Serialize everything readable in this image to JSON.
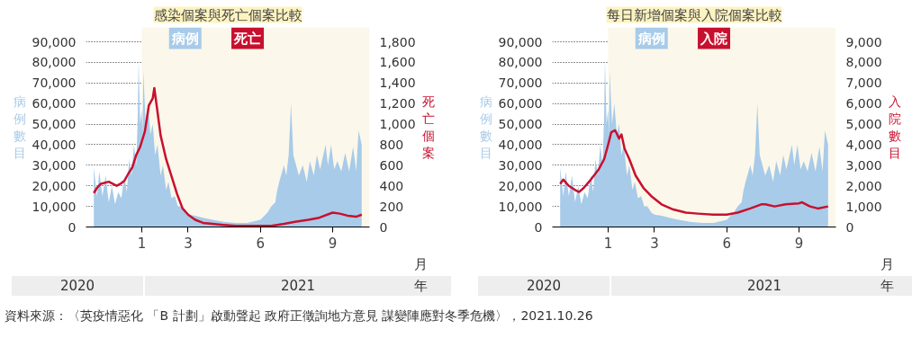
{
  "chart_data": [
    {
      "type": "area",
      "title": "感染個案與死亡個案比較",
      "ylabel": "病例數目",
      "y2label": "死亡個案",
      "xlim": [
        "2020-10-22",
        "2021-10-18"
      ],
      "ylim": [
        0,
        97000
      ],
      "y2lim": [
        0,
        1940
      ],
      "xticks": [
        {
          "value": "2021-01-01",
          "label": "1"
        },
        {
          "value": "2021-03-01",
          "label": "3"
        },
        {
          "value": "2021-06-01",
          "label": "6"
        },
        {
          "value": "2021-09-01",
          "label": "9"
        }
      ],
      "yticks": [
        0,
        {
          "value": 10000,
          "label": "10,000"
        },
        {
          "value": 20000,
          "label": "20,000"
        },
        {
          "value": 30000,
          "label": "30,000"
        },
        {
          "value": 40000,
          "label": "40,000"
        },
        {
          "value": 50000,
          "label": "50,000"
        },
        {
          "value": 60000,
          "label": "60,000"
        },
        {
          "value": 70000,
          "label": "70,000"
        },
        {
          "value": 80000,
          "label": "80,000"
        },
        {
          "value": 90000,
          "label": "90,000"
        }
      ],
      "y2ticks": [
        0,
        200,
        400,
        600,
        800,
        {
          "value": 1000,
          "label": "1,000"
        },
        {
          "value": 1200,
          "label": "1,200"
        },
        {
          "value": 1400,
          "label": "1,400"
        },
        {
          "value": 1600,
          "label": "1,600"
        },
        {
          "value": 1800,
          "label": "1,800"
        }
      ],
      "grid": "y",
      "legend": "top",
      "bands": [
        {
          "axis": "x",
          "from": "2021-01-01",
          "to": "2021-10-18",
          "color": "#fbf7ea"
        }
      ],
      "annotations": [
        "2020",
        "2021",
        "月",
        "年",
        "資料來源：〈英疫情惡化 「B 計劃」啟動聲起 政府正徵詢地方意見 謀變陣應對冬季危機〉，2021.10.26"
      ],
      "series": [
        {
          "name": "病例",
          "type": "area",
          "color": "#a7cbe9",
          "x": [
            "2020-11-01",
            "2020-11-05",
            "2020-11-08",
            "2020-11-12",
            "2020-11-16",
            "2020-11-20",
            "2020-11-24",
            "2020-11-28",
            "2020-12-02",
            "2020-12-06",
            "2020-12-10",
            "2020-12-13",
            "2020-12-16",
            "2020-12-19",
            "2020-12-22",
            "2020-12-25",
            "2020-12-27",
            "2020-12-28",
            "2020-12-30",
            "2021-01-01",
            "2021-01-02",
            "2021-01-03",
            "2021-01-06",
            "2021-01-09",
            "2021-01-12",
            "2021-01-15",
            "2021-01-18",
            "2021-01-21",
            "2021-01-25",
            "2021-01-28",
            "2021-02-01",
            "2021-02-04",
            "2021-02-08",
            "2021-02-12",
            "2021-02-16",
            "2021-02-20",
            "2021-02-25",
            "2021-03-01",
            "2021-03-10",
            "2021-03-20",
            "2021-04-01",
            "2021-04-15",
            "2021-05-01",
            "2021-05-15",
            "2021-06-01",
            "2021-06-10",
            "2021-06-15",
            "2021-06-20",
            "2021-06-22",
            "2021-06-25",
            "2021-06-28",
            "2021-07-01",
            "2021-07-04",
            "2021-07-07",
            "2021-07-10",
            "2021-07-13",
            "2021-07-20",
            "2021-07-25",
            "2021-07-30",
            "2021-08-03",
            "2021-08-08",
            "2021-08-12",
            "2021-08-16",
            "2021-08-23",
            "2021-08-26",
            "2021-08-30",
            "2021-09-03",
            "2021-09-07",
            "2021-09-12",
            "2021-09-17",
            "2021-09-22",
            "2021-09-27",
            "2021-10-01",
            "2021-10-04",
            "2021-10-08"
          ],
          "values": [
            29000,
            15000,
            27000,
            15000,
            25000,
            12000,
            20000,
            11000,
            17000,
            14000,
            25000,
            17000,
            33000,
            25000,
            40000,
            30000,
            55000,
            81000,
            50000,
            57000,
            45000,
            76000,
            50000,
            60000,
            45000,
            50000,
            35000,
            40000,
            25000,
            30000,
            18000,
            22000,
            14000,
            15000,
            10000,
            10000,
            7000,
            6000,
            5500,
            4500,
            3500,
            2500,
            2000,
            2000,
            3500,
            7000,
            10000,
            12000,
            17000,
            22000,
            26000,
            30000,
            25000,
            35000,
            60000,
            35000,
            25000,
            30000,
            22000,
            32000,
            25000,
            35000,
            28000,
            40000,
            30000,
            40000,
            28000,
            32000,
            27000,
            36000,
            27000,
            39000,
            27000,
            47000,
            40000
          ]
        },
        {
          "name": "死亡",
          "type": "line",
          "axis": "y2",
          "color": "#c8102e",
          "x": [
            "2020-11-01",
            "2020-11-05",
            "2020-11-10",
            "2020-11-20",
            "2020-11-30",
            "2020-12-05",
            "2020-12-10",
            "2020-12-15",
            "2020-12-20",
            "2020-12-25",
            "2020-12-30",
            "2021-01-05",
            "2021-01-10",
            "2021-01-15",
            "2021-01-17",
            "2021-01-20",
            "2021-01-25",
            "2021-02-01",
            "2021-02-08",
            "2021-02-15",
            "2021-02-22",
            "2021-03-01",
            "2021-03-10",
            "2021-03-20",
            "2021-04-01",
            "2021-04-15",
            "2021-05-01",
            "2021-06-01",
            "2021-06-15",
            "2021-07-01",
            "2021-07-15",
            "2021-08-01",
            "2021-08-15",
            "2021-09-01",
            "2021-09-10",
            "2021-09-20",
            "2021-10-01",
            "2021-10-08"
          ],
          "values": [
            330,
            380,
            420,
            440,
            400,
            420,
            450,
            520,
            580,
            700,
            780,
            930,
            1180,
            1250,
            1350,
            1180,
            890,
            660,
            490,
            320,
            180,
            120,
            70,
            40,
            30,
            20,
            10,
            10,
            10,
            30,
            50,
            70,
            90,
            140,
            130,
            110,
            100,
            120
          ]
        }
      ]
    },
    {
      "type": "area",
      "title": "每日新增個案與入院個案比較",
      "ylabel": "病例數目",
      "y2label": "入院數目",
      "xlim": [
        "2020-10-22",
        "2021-10-18"
      ],
      "ylim": [
        0,
        97000
      ],
      "y2lim": [
        0,
        9700
      ],
      "xticks": [
        {
          "value": "2021-01-01",
          "label": "1"
        },
        {
          "value": "2021-03-01",
          "label": "3"
        },
        {
          "value": "2021-06-01",
          "label": "6"
        },
        {
          "value": "2021-09-01",
          "label": "9"
        }
      ],
      "yticks": [
        0,
        {
          "value": 10000,
          "label": "10,000"
        },
        {
          "value": 20000,
          "label": "20,000"
        },
        {
          "value": 30000,
          "label": "30,000"
        },
        {
          "value": 40000,
          "label": "40,000"
        },
        {
          "value": 50000,
          "label": "50,000"
        },
        {
          "value": 60000,
          "label": "60,000"
        },
        {
          "value": 70000,
          "label": "70,000"
        },
        {
          "value": 80000,
          "label": "80,000"
        },
        {
          "value": 90000,
          "label": "90,000"
        }
      ],
      "y2ticks": [
        0,
        {
          "value": 1000,
          "label": "1,000"
        },
        {
          "value": 2000,
          "label": "2,000"
        },
        {
          "value": 3000,
          "label": "3,000"
        },
        {
          "value": 4000,
          "label": "4,000"
        },
        {
          "value": 5000,
          "label": "5,000"
        },
        {
          "value": 6000,
          "label": "6,000"
        },
        {
          "value": 7000,
          "label": "7,000"
        },
        {
          "value": 8000,
          "label": "8,000"
        },
        {
          "value": 9000,
          "label": "9,000"
        }
      ],
      "grid": "y",
      "legend": "top",
      "bands": [
        {
          "axis": "x",
          "from": "2021-01-01",
          "to": "2021-10-18",
          "color": "#fbf7ea"
        }
      ],
      "annotations": [
        "2020",
        "2021",
        "月",
        "年"
      ],
      "series": [
        {
          "name": "病例",
          "type": "area",
          "color": "#a7cbe9",
          "x": [
            "2020-11-01",
            "2020-11-05",
            "2020-11-08",
            "2020-11-12",
            "2020-11-16",
            "2020-11-20",
            "2020-11-24",
            "2020-11-28",
            "2020-12-02",
            "2020-12-06",
            "2020-12-10",
            "2020-12-13",
            "2020-12-16",
            "2020-12-19",
            "2020-12-22",
            "2020-12-25",
            "2020-12-27",
            "2020-12-28",
            "2020-12-30",
            "2021-01-01",
            "2021-01-02",
            "2021-01-03",
            "2021-01-06",
            "2021-01-09",
            "2021-01-12",
            "2021-01-15",
            "2021-01-18",
            "2021-01-21",
            "2021-01-25",
            "2021-01-28",
            "2021-02-01",
            "2021-02-04",
            "2021-02-08",
            "2021-02-12",
            "2021-02-16",
            "2021-02-20",
            "2021-02-25",
            "2021-03-01",
            "2021-03-10",
            "2021-03-20",
            "2021-04-01",
            "2021-04-15",
            "2021-05-01",
            "2021-05-15",
            "2021-06-01",
            "2021-06-10",
            "2021-06-15",
            "2021-06-20",
            "2021-06-22",
            "2021-06-25",
            "2021-06-28",
            "2021-07-01",
            "2021-07-04",
            "2021-07-07",
            "2021-07-10",
            "2021-07-13",
            "2021-07-20",
            "2021-07-25",
            "2021-07-30",
            "2021-08-03",
            "2021-08-08",
            "2021-08-12",
            "2021-08-16",
            "2021-08-23",
            "2021-08-26",
            "2021-08-30",
            "2021-09-03",
            "2021-09-07",
            "2021-09-12",
            "2021-09-17",
            "2021-09-22",
            "2021-09-27",
            "2021-10-01",
            "2021-10-04",
            "2021-10-08"
          ],
          "values": [
            29000,
            15000,
            27000,
            15000,
            25000,
            12000,
            20000,
            11000,
            17000,
            14000,
            25000,
            17000,
            33000,
            25000,
            40000,
            30000,
            55000,
            81000,
            50000,
            57000,
            45000,
            76000,
            50000,
            60000,
            45000,
            50000,
            35000,
            40000,
            25000,
            30000,
            18000,
            22000,
            14000,
            15000,
            10000,
            10000,
            7000,
            6000,
            5500,
            4500,
            3500,
            2500,
            2000,
            2000,
            3500,
            7000,
            10000,
            12000,
            17000,
            22000,
            26000,
            30000,
            25000,
            35000,
            60000,
            35000,
            25000,
            30000,
            22000,
            32000,
            25000,
            35000,
            28000,
            40000,
            30000,
            40000,
            28000,
            32000,
            27000,
            36000,
            27000,
            39000,
            27000,
            47000,
            40000
          ]
        },
        {
          "name": "入院",
          "type": "line",
          "axis": "y2",
          "color": "#c8102e",
          "x": [
            "2020-11-01",
            "2020-11-05",
            "2020-11-12",
            "2020-11-20",
            "2020-11-25",
            "2020-12-01",
            "2020-12-10",
            "2020-12-20",
            "2020-12-27",
            "2021-01-01",
            "2021-01-05",
            "2021-01-10",
            "2021-01-15",
            "2021-01-18",
            "2021-01-22",
            "2021-01-28",
            "2021-02-05",
            "2021-02-15",
            "2021-02-25",
            "2021-03-10",
            "2021-03-25",
            "2021-04-10",
            "2021-04-25",
            "2021-05-15",
            "2021-06-01",
            "2021-06-15",
            "2021-07-01",
            "2021-07-15",
            "2021-07-20",
            "2021-08-01",
            "2021-08-15",
            "2021-09-01",
            "2021-09-05",
            "2021-09-15",
            "2021-09-25",
            "2021-10-08"
          ],
          "values": [
            2100,
            2300,
            2000,
            1800,
            1700,
            1900,
            2300,
            2800,
            3300,
            4000,
            4600,
            4700,
            4300,
            4500,
            3800,
            3300,
            2500,
            1900,
            1500,
            1100,
            850,
            700,
            650,
            600,
            600,
            700,
            900,
            1100,
            1100,
            1000,
            1100,
            1150,
            1200,
            1000,
            900,
            1000
          ]
        }
      ]
    }
  ]
}
